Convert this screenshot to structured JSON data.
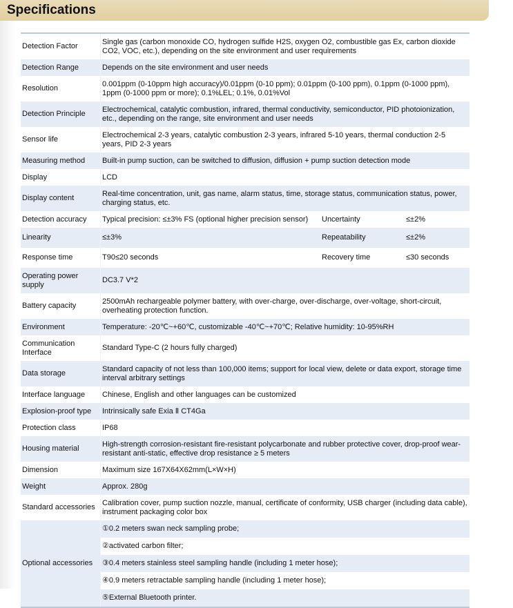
{
  "title": "Specifications",
  "colors": {
    "header": "#e2cf9f",
    "row_alt": "#e6ecf5",
    "border": "#b7c9dc"
  },
  "rows": [
    {
      "label": "Detection Factor",
      "value": "Single gas (carbon monoxide CO, hydrogen sulfide H2S, oxygen O2, combustible gas Ex, carbon dioxide CO2, VOC, etc.), depending on the site environment and user requirements"
    },
    {
      "label": "Detection Range",
      "value": "Depends on the site environment and user needs"
    },
    {
      "label": "Resolution",
      "value": "0.001ppm (0-10ppm high accuracy)/0.01ppm (0-10 ppm); 0.01ppm (0-100 ppm), 0.1ppm (0-1000 ppm), 1ppm (0-1000 ppm or more); 0.1%LEL; 0.1%, 0.01%Vol"
    },
    {
      "label": "Detection Principle",
      "value": "Electrochemical, catalytic combustion, infrared, thermal conductivity, semiconductor, PID photoionization, etc., depending on the range, site environment and user needs"
    },
    {
      "label": "Sensor life",
      "value": "Electrochemical 2-3 years, catalytic combustion 2-3 years, infrared 5-10 years, thermal conduction 2-5 years, PID 2-3 years"
    },
    {
      "label": "Measuring method",
      "value": "Built-in pump suction, can be switched to diffusion, diffusion + pump suction detection mode"
    },
    {
      "label": "Display",
      "value": "LCD"
    },
    {
      "label": "Display content",
      "value": "Real-time concentration, unit, gas name, alarm status, time, storage status, communication status, power, charging status, etc."
    },
    {
      "label": "Detection accuracy",
      "value": "Typical precision: ≤±3% FS (optional higher precision sensor)",
      "label2": "Uncertainty",
      "value2": "≤±2%"
    },
    {
      "label": "Linearity",
      "value": "≤±3%",
      "label2": "Repeatability",
      "value2": "≤±2%",
      "tall": true
    },
    {
      "label": "Response time",
      "value": "T90≤20 seconds",
      "label2": "Recovery time",
      "value2": "≤30 seconds",
      "tall": true
    },
    {
      "label": "Operating power supply",
      "value": "DC3.7 V*2"
    },
    {
      "label": "Battery capacity",
      "value": "2500mAh rechargeable polymer battery, with over-charge, over-discharge, over-voltage, short-circuit, overheating protection function."
    },
    {
      "label": "Environment",
      "value": "Temperature: -20℃~+60℃, customizable -40℃~+70℃; Relative humidity: 10-95%RH"
    },
    {
      "label": "Communication Interface",
      "value": "Standard Type-C (2 hours fully charged)"
    },
    {
      "label": "Data storage",
      "value": "Standard capacity of not less than 100,000 items; support for local view, delete or data export, storage time interval arbitrary settings"
    },
    {
      "label": "Interface language",
      "value": "Chinese, English and other languages can be customized"
    },
    {
      "label": "Explosion-proof type",
      "value": "Intrinsically safe Exia Ⅱ CT4Ga"
    },
    {
      "label": "Protection class",
      "value": "IP68"
    },
    {
      "label": "Housing material",
      "value": "High-strength corrosion-resistant fire-resistant polycarbonate and rubber protective cover, drop-proof wear-resistant anti-static, effective drop resistance ≥ 5 meters"
    },
    {
      "label": "Dimension",
      "value": "Maximum size 167X64X62mm(L×W×H)"
    },
    {
      "label": "Weight",
      "value": "Approx. 280g"
    },
    {
      "label": "Standard accessories",
      "value": "Calibration cover, pump suction nozzle, manual, certificate of conformity, USB charger (including data cable), instrument packaging color box"
    }
  ],
  "optional": {
    "label": "Optional accessories",
    "items": [
      "①0.2 meters swan neck sampling probe;",
      "②activated carbon filter;",
      "③0.4 meters stainless steel sampling handle (including 1 meter hose);",
      "④0.9 meters retractable sampling handle (including 1 meter hose);",
      "⑤External Bluetooth printer."
    ]
  }
}
